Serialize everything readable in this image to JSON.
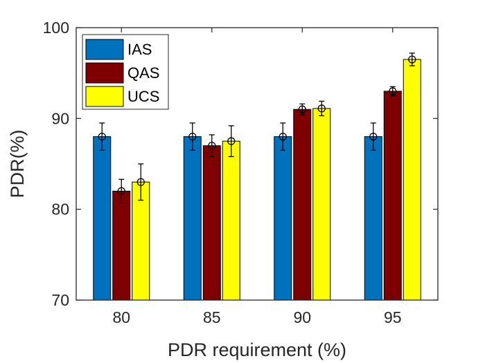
{
  "chart_data": {
    "type": "bar",
    "title": "",
    "xlabel": "PDR requirement (%)",
    "ylabel": "PDR(%)",
    "ylim": [
      70,
      100
    ],
    "yticks": [
      70,
      80,
      90,
      100
    ],
    "categories": [
      "80",
      "85",
      "90",
      "95"
    ],
    "series": [
      {
        "name": "IAS",
        "color": "#0072BD",
        "values": [
          88,
          88,
          88,
          88
        ],
        "errors": [
          1.5,
          1.5,
          1.5,
          1.5
        ]
      },
      {
        "name": "QAS",
        "color": "#7E0000",
        "values": [
          82,
          87,
          91,
          93
        ],
        "errors": [
          1.3,
          1.2,
          0.6,
          0.5
        ]
      },
      {
        "name": "UCS",
        "color": "#FFFF00",
        "values": [
          83,
          87.5,
          91.1,
          96.5
        ],
        "errors": [
          2.0,
          1.7,
          0.8,
          0.7
        ]
      }
    ],
    "legend_position": "top-left",
    "grid": false,
    "error_bars": true
  }
}
